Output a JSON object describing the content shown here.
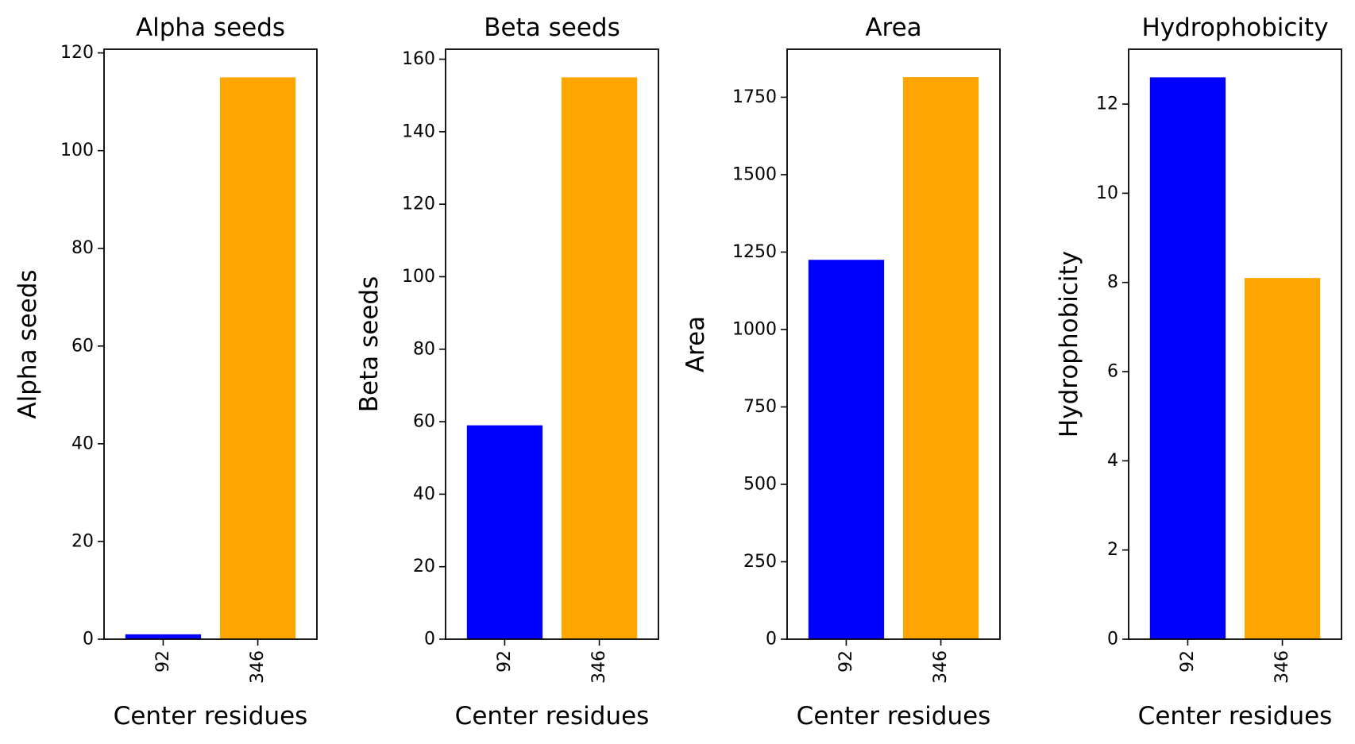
{
  "colors": {
    "bar_first": "#0000ff",
    "bar_second": "#ffa500",
    "axis": "#000000",
    "background": "#ffffff"
  },
  "chart_data": [
    {
      "type": "bar",
      "title": "Alpha seeds",
      "xlabel": "Center residues",
      "ylabel": "Alpha seeds",
      "categories": [
        "92",
        "346"
      ],
      "values": [
        1,
        115
      ],
      "ylim": [
        0,
        120.75
      ],
      "yticks": [
        0,
        20,
        40,
        60,
        80,
        100,
        120
      ],
      "bar_colors": [
        "#0000ff",
        "#ffa500"
      ],
      "grid": false
    },
    {
      "type": "bar",
      "title": "Beta seeds",
      "xlabel": "Center residues",
      "ylabel": "Beta seeds",
      "categories": [
        "92",
        "346"
      ],
      "values": [
        59,
        155
      ],
      "ylim": [
        0,
        162.75
      ],
      "yticks": [
        0,
        20,
        40,
        60,
        80,
        100,
        120,
        140,
        160
      ],
      "bar_colors": [
        "#0000ff",
        "#ffa500"
      ],
      "grid": false
    },
    {
      "type": "bar",
      "title": "Area",
      "xlabel": "Center residues",
      "ylabel": "Area",
      "categories": [
        "92",
        "346"
      ],
      "values": [
        1225,
        1815
      ],
      "ylim": [
        0,
        1905
      ],
      "yticks": [
        0,
        250,
        500,
        750,
        1000,
        1250,
        1500,
        1750
      ],
      "bar_colors": [
        "#0000ff",
        "#ffa500"
      ],
      "grid": false
    },
    {
      "type": "bar",
      "title": "Hydrophobicity",
      "xlabel": "Center residues",
      "ylabel": "Hydrophobicity",
      "categories": [
        "92",
        "346"
      ],
      "values": [
        12.6,
        8.1
      ],
      "ylim": [
        0,
        13.23
      ],
      "yticks": [
        0,
        2,
        4,
        6,
        8,
        10,
        12
      ],
      "bar_colors": [
        "#0000ff",
        "#ffa500"
      ],
      "grid": false
    }
  ]
}
